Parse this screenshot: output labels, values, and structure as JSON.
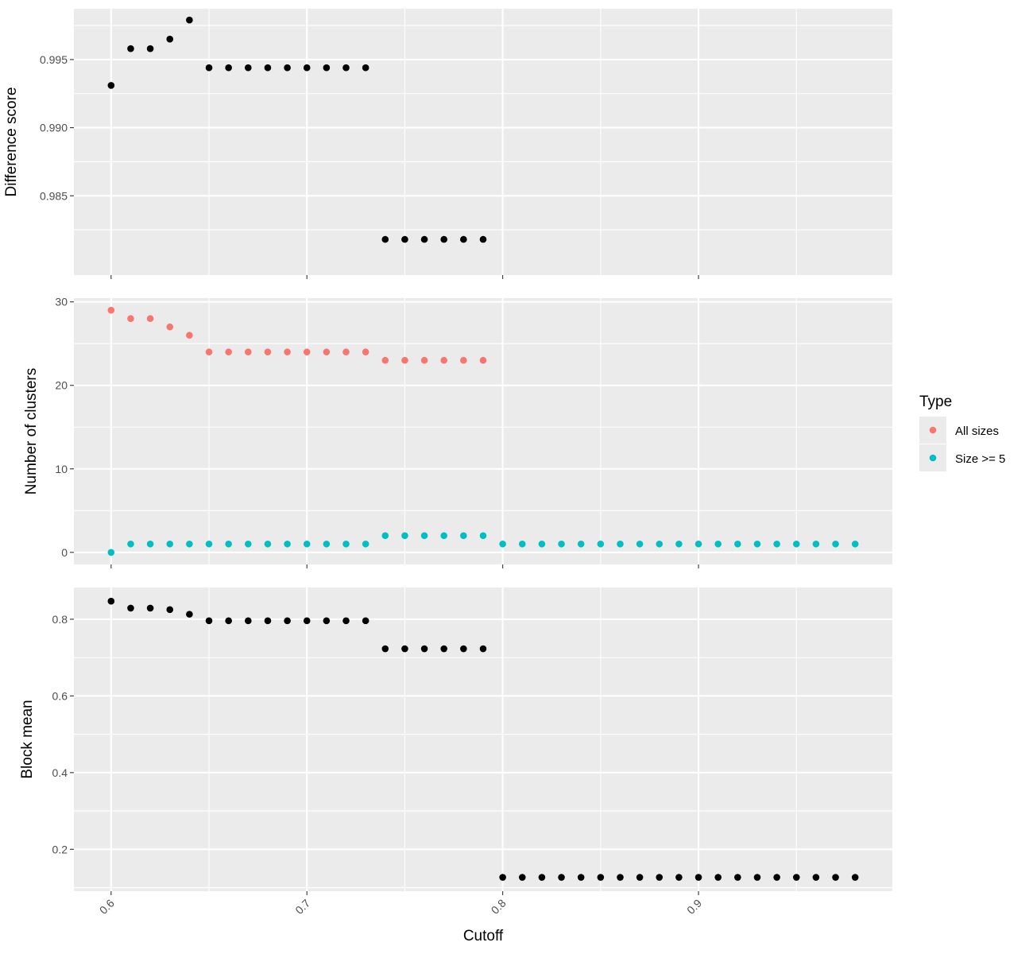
{
  "chart_data": {
    "type": "scatter",
    "x_axis": {
      "label": "Cutoff",
      "range": [
        0.581,
        0.999
      ],
      "ticks": [
        0.6,
        0.7,
        0.8,
        0.9
      ],
      "tick_labels": [
        "0.6",
        "0.7",
        "0.8",
        "0.9"
      ],
      "tick_label_rotation_deg": -45
    },
    "legend": {
      "title": "Type",
      "placement": "right",
      "entries": [
        {
          "label": "All sizes",
          "color": "#F8766D"
        },
        {
          "label": "Size >= 5",
          "color": "#00BFC4"
        }
      ]
    },
    "panel_background": "#EBEBEB",
    "grid": true,
    "panels": [
      {
        "ylabel": "Difference score",
        "ylim": [
          0.97918,
          0.99873
        ],
        "yticks": [
          0.985,
          0.99,
          0.995
        ],
        "ytick_labels": [
          "0.985",
          "0.990",
          "0.995"
        ],
        "series": [
          {
            "color": "#000000",
            "x": [
              0.6,
              0.61,
              0.62,
              0.63,
              0.64,
              0.65,
              0.66,
              0.67,
              0.68,
              0.69,
              0.7,
              0.71,
              0.72,
              0.73,
              0.74,
              0.75,
              0.76,
              0.77,
              0.78,
              0.79
            ],
            "y": [
              0.9931,
              0.9958,
              0.9958,
              0.9965,
              0.9979,
              0.9944,
              0.9944,
              0.9944,
              0.9944,
              0.9944,
              0.9944,
              0.9944,
              0.9944,
              0.9944,
              0.9818,
              0.9818,
              0.9818,
              0.9818,
              0.9818,
              0.9818
            ]
          }
        ]
      },
      {
        "ylabel": "Number of clusters",
        "ylim": [
          -1.45,
          30.45
        ],
        "yticks": [
          0,
          10,
          20,
          30
        ],
        "ytick_labels": [
          "0",
          "10",
          "20",
          "30"
        ],
        "series": [
          {
            "name": "All sizes",
            "color": "#F8766D",
            "x": [
              0.6,
              0.61,
              0.62,
              0.63,
              0.64,
              0.65,
              0.66,
              0.67,
              0.68,
              0.69,
              0.7,
              0.71,
              0.72,
              0.73,
              0.74,
              0.75,
              0.76,
              0.77,
              0.78,
              0.79
            ],
            "y": [
              29,
              28,
              28,
              27,
              26,
              24,
              24,
              24,
              24,
              24,
              24,
              24,
              24,
              24,
              23,
              23,
              23,
              23,
              23,
              23
            ]
          },
          {
            "name": "Size >= 5",
            "color": "#00BFC4",
            "x": [
              0.6,
              0.61,
              0.62,
              0.63,
              0.64,
              0.65,
              0.66,
              0.67,
              0.68,
              0.69,
              0.7,
              0.71,
              0.72,
              0.73,
              0.74,
              0.75,
              0.76,
              0.77,
              0.78,
              0.79,
              0.8,
              0.81,
              0.82,
              0.83,
              0.84,
              0.85,
              0.86,
              0.87,
              0.88,
              0.89,
              0.9,
              0.91,
              0.92,
              0.93,
              0.94,
              0.95,
              0.96,
              0.97,
              0.98
            ],
            "y": [
              0,
              1,
              1,
              1,
              1,
              1,
              1,
              1,
              1,
              1,
              1,
              1,
              1,
              1,
              2,
              2,
              2,
              2,
              2,
              2,
              1,
              1,
              1,
              1,
              1,
              1,
              1,
              1,
              1,
              1,
              1,
              1,
              1,
              1,
              1,
              1,
              1,
              1,
              1
            ]
          }
        ]
      },
      {
        "ylabel": "Block mean",
        "ylim": [
          0.0908,
          0.8827
        ],
        "yticks": [
          0.2,
          0.4,
          0.6,
          0.8
        ],
        "ytick_labels": [
          "0.2",
          "0.4",
          "0.6",
          "0.8"
        ],
        "series": [
          {
            "color": "#000000",
            "x": [
              0.6,
              0.61,
              0.62,
              0.63,
              0.64,
              0.65,
              0.66,
              0.67,
              0.68,
              0.69,
              0.7,
              0.71,
              0.72,
              0.73,
              0.74,
              0.75,
              0.76,
              0.77,
              0.78,
              0.79,
              0.8,
              0.81,
              0.82,
              0.83,
              0.84,
              0.85,
              0.86,
              0.87,
              0.88,
              0.89,
              0.9,
              0.91,
              0.92,
              0.93,
              0.94,
              0.95,
              0.96,
              0.97,
              0.98
            ],
            "y": [
              0.847,
              0.829,
              0.829,
              0.825,
              0.813,
              0.796,
              0.796,
              0.796,
              0.796,
              0.796,
              0.796,
              0.796,
              0.796,
              0.796,
              0.723,
              0.723,
              0.723,
              0.723,
              0.723,
              0.723,
              0.127,
              0.127,
              0.127,
              0.127,
              0.127,
              0.127,
              0.127,
              0.127,
              0.127,
              0.127,
              0.127,
              0.127,
              0.127,
              0.127,
              0.127,
              0.127,
              0.127,
              0.127,
              0.127
            ]
          }
        ]
      }
    ]
  }
}
